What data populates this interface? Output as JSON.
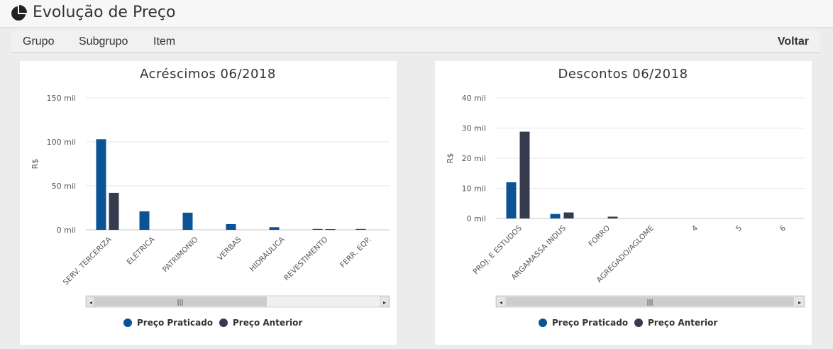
{
  "app": {
    "title": "Evolução de Preço",
    "icon": "pie-chart-icon"
  },
  "nav": {
    "items": [
      {
        "label": "Grupo"
      },
      {
        "label": "Subgrupo"
      },
      {
        "label": "Item"
      }
    ],
    "back_label": "Voltar"
  },
  "colors": {
    "series_current": "#0b5394",
    "series_previous": "#343c4e"
  },
  "chart_data": [
    {
      "type": "bar",
      "title": "Acréscimos 06/2018",
      "ylabel": "R$",
      "ylim": [
        0,
        150000
      ],
      "yticks": [
        "0 mil",
        "50 mil",
        "100 mil",
        "150 mil"
      ],
      "categories": [
        "SERV. TERCERIZA",
        "ELÉTRICA",
        "PATRIMONIO",
        "VERBAS",
        "HIDRÁULICA",
        "REVESTIMENTO",
        "FERR. EQP."
      ],
      "series": [
        {
          "name": "Preço Praticado",
          "values": [
            103000,
            21000,
            19500,
            6500,
            3000,
            1000,
            1000
          ]
        },
        {
          "name": "Preço Anterior",
          "values": [
            42000,
            0,
            0,
            0,
            0,
            800,
            0
          ]
        }
      ],
      "legend_position": "bottom",
      "grid": true
    },
    {
      "type": "bar",
      "title": "Descontos 06/2018",
      "ylabel": "R$",
      "ylim": [
        0,
        40000
      ],
      "yticks": [
        "0 mil",
        "10 mil",
        "20 mil",
        "30 mil",
        "40 mil"
      ],
      "categories": [
        "PROJ. E ESTUDOS",
        "ARGAMASSA INDUS",
        "FORRO",
        "AGREGADO/AGLOME",
        "4",
        "5",
        "6"
      ],
      "series": [
        {
          "name": "Preço Praticado",
          "values": [
            12000,
            1500,
            0,
            0,
            0,
            0,
            0
          ]
        },
        {
          "name": "Preço Anterior",
          "values": [
            28800,
            2000,
            600,
            0,
            0,
            0,
            0
          ]
        }
      ],
      "legend_position": "bottom",
      "grid": true
    }
  ]
}
